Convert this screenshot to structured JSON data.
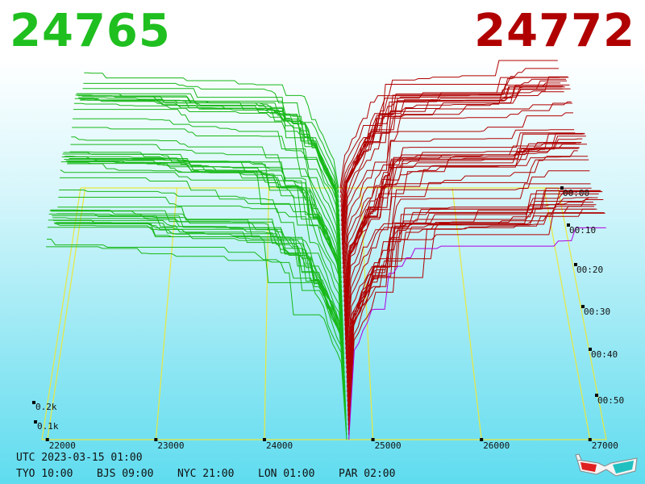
{
  "header": {
    "bid_price": "24765",
    "ask_price": "24772",
    "bid_color": "#1fbf1f",
    "ask_color": "#b00000"
  },
  "chart_data": {
    "type": "area",
    "description_axes": "depth",
    "x_ticks": [
      "22000",
      "23000",
      "24000",
      "25000",
      "26000",
      "27000"
    ],
    "y_ticks": [
      "0.1k",
      "0.2k"
    ],
    "z_ticks": [
      "00:00",
      "00:10",
      "00:20",
      "00:30",
      "00:40",
      "00:50"
    ],
    "xlim": [
      21950,
      27150
    ],
    "mid_price": 24768,
    "bid_color": "#18b818",
    "ask_color": "#b00000",
    "grid_color": "#e8e840",
    "highlight_color": "#b000e0",
    "series_count": 54
  },
  "footer": {
    "utc": "UTC 2023-03-15 01:00",
    "zones": [
      "TYO 10:00",
      "BJS 09:00",
      "NYC 21:00",
      "LON 01:00",
      "PAR 02:00"
    ]
  },
  "icons": {
    "glasses": "3d-glasses-icon"
  }
}
